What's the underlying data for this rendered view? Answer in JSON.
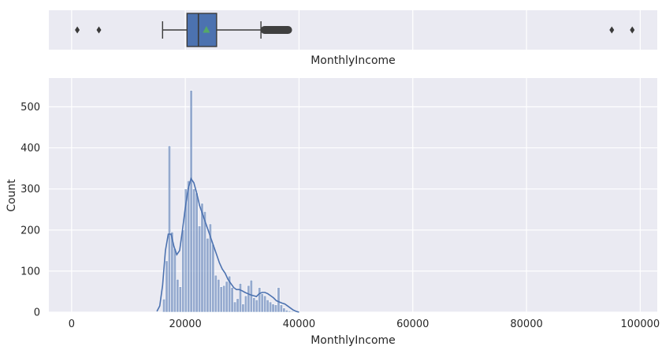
{
  "chart_data": [
    {
      "type": "box",
      "xlabel": "MonthlyIncome",
      "xlim": [
        -4000,
        103000
      ],
      "grid": true,
      "q1": 20300,
      "median": 22300,
      "q3": 25500,
      "mean": 23700,
      "whisker_low": 16000,
      "whisker_high": 33300,
      "outliers_high_dense_range": [
        33300,
        38700
      ],
      "outliers": [
        1000,
        4800,
        95000,
        98600
      ],
      "colors": {
        "box": "#4c72b0",
        "mean_marker": "#55a868",
        "whisker": "#3a3a3a",
        "background": "#eaeaf2",
        "grid": "#ffffff"
      }
    },
    {
      "type": "histogram",
      "xlabel": "MonthlyIncome",
      "ylabel": "Count",
      "xlim": [
        -4000,
        103000
      ],
      "ylim": [
        0,
        570
      ],
      "xticks": [
        0,
        20000,
        40000,
        60000,
        80000,
        100000
      ],
      "yticks": [
        0,
        100,
        200,
        300,
        400,
        500
      ],
      "bin_width": 480,
      "bin_starts": [
        16000,
        16480,
        16960,
        17440,
        17920,
        18400,
        18880,
        19360,
        19840,
        20320,
        20800,
        21280,
        21760,
        22240,
        22720,
        23200,
        23680,
        24160,
        24640,
        25120,
        25600,
        26080,
        26560,
        27040,
        27520,
        28000,
        28480,
        28960,
        29440,
        29920,
        30400,
        30880,
        31360,
        31840,
        32320,
        32800,
        33280,
        33760,
        34240,
        34720,
        35200,
        35680,
        36160,
        36640,
        37120,
        37600,
        38080,
        38560
      ],
      "counts": [
        32,
        125,
        405,
        195,
        155,
        80,
        62,
        200,
        300,
        320,
        540,
        300,
        290,
        210,
        265,
        245,
        180,
        215,
        165,
        90,
        80,
        62,
        65,
        75,
        88,
        60,
        25,
        33,
        70,
        20,
        40,
        65,
        78,
        35,
        30,
        60,
        45,
        40,
        30,
        25,
        20,
        18,
        60,
        18,
        10,
        5,
        3,
        2
      ],
      "kde": {
        "x": [
          15000,
          15500,
          16000,
          16500,
          17000,
          17500,
          18000,
          18500,
          19000,
          19500,
          20000,
          20500,
          21000,
          21500,
          22000,
          22500,
          23000,
          23500,
          24000,
          24500,
          25000,
          25500,
          26000,
          26500,
          27000,
          27500,
          28000,
          28500,
          29000,
          29500,
          30000,
          30500,
          31000,
          31500,
          32000,
          32500,
          33000,
          33500,
          34000,
          34500,
          35000,
          35500,
          36000,
          36500,
          37000,
          37500,
          38000,
          38500,
          39000,
          39500,
          40000
        ],
        "y": [
          2,
          15,
          65,
          150,
          190,
          190,
          160,
          140,
          150,
          200,
          255,
          300,
          325,
          315,
          290,
          260,
          240,
          220,
          200,
          180,
          160,
          140,
          120,
          105,
          95,
          80,
          70,
          60,
          55,
          55,
          52,
          48,
          45,
          42,
          40,
          38,
          45,
          48,
          48,
          45,
          40,
          35,
          28,
          25,
          22,
          20,
          15,
          10,
          5,
          2,
          0
        ]
      },
      "colors": {
        "bars": "#4c72b0",
        "bars_opacity": 0.55,
        "kde": "#4c72b0",
        "background": "#eaeaf2",
        "grid": "#ffffff"
      }
    }
  ]
}
